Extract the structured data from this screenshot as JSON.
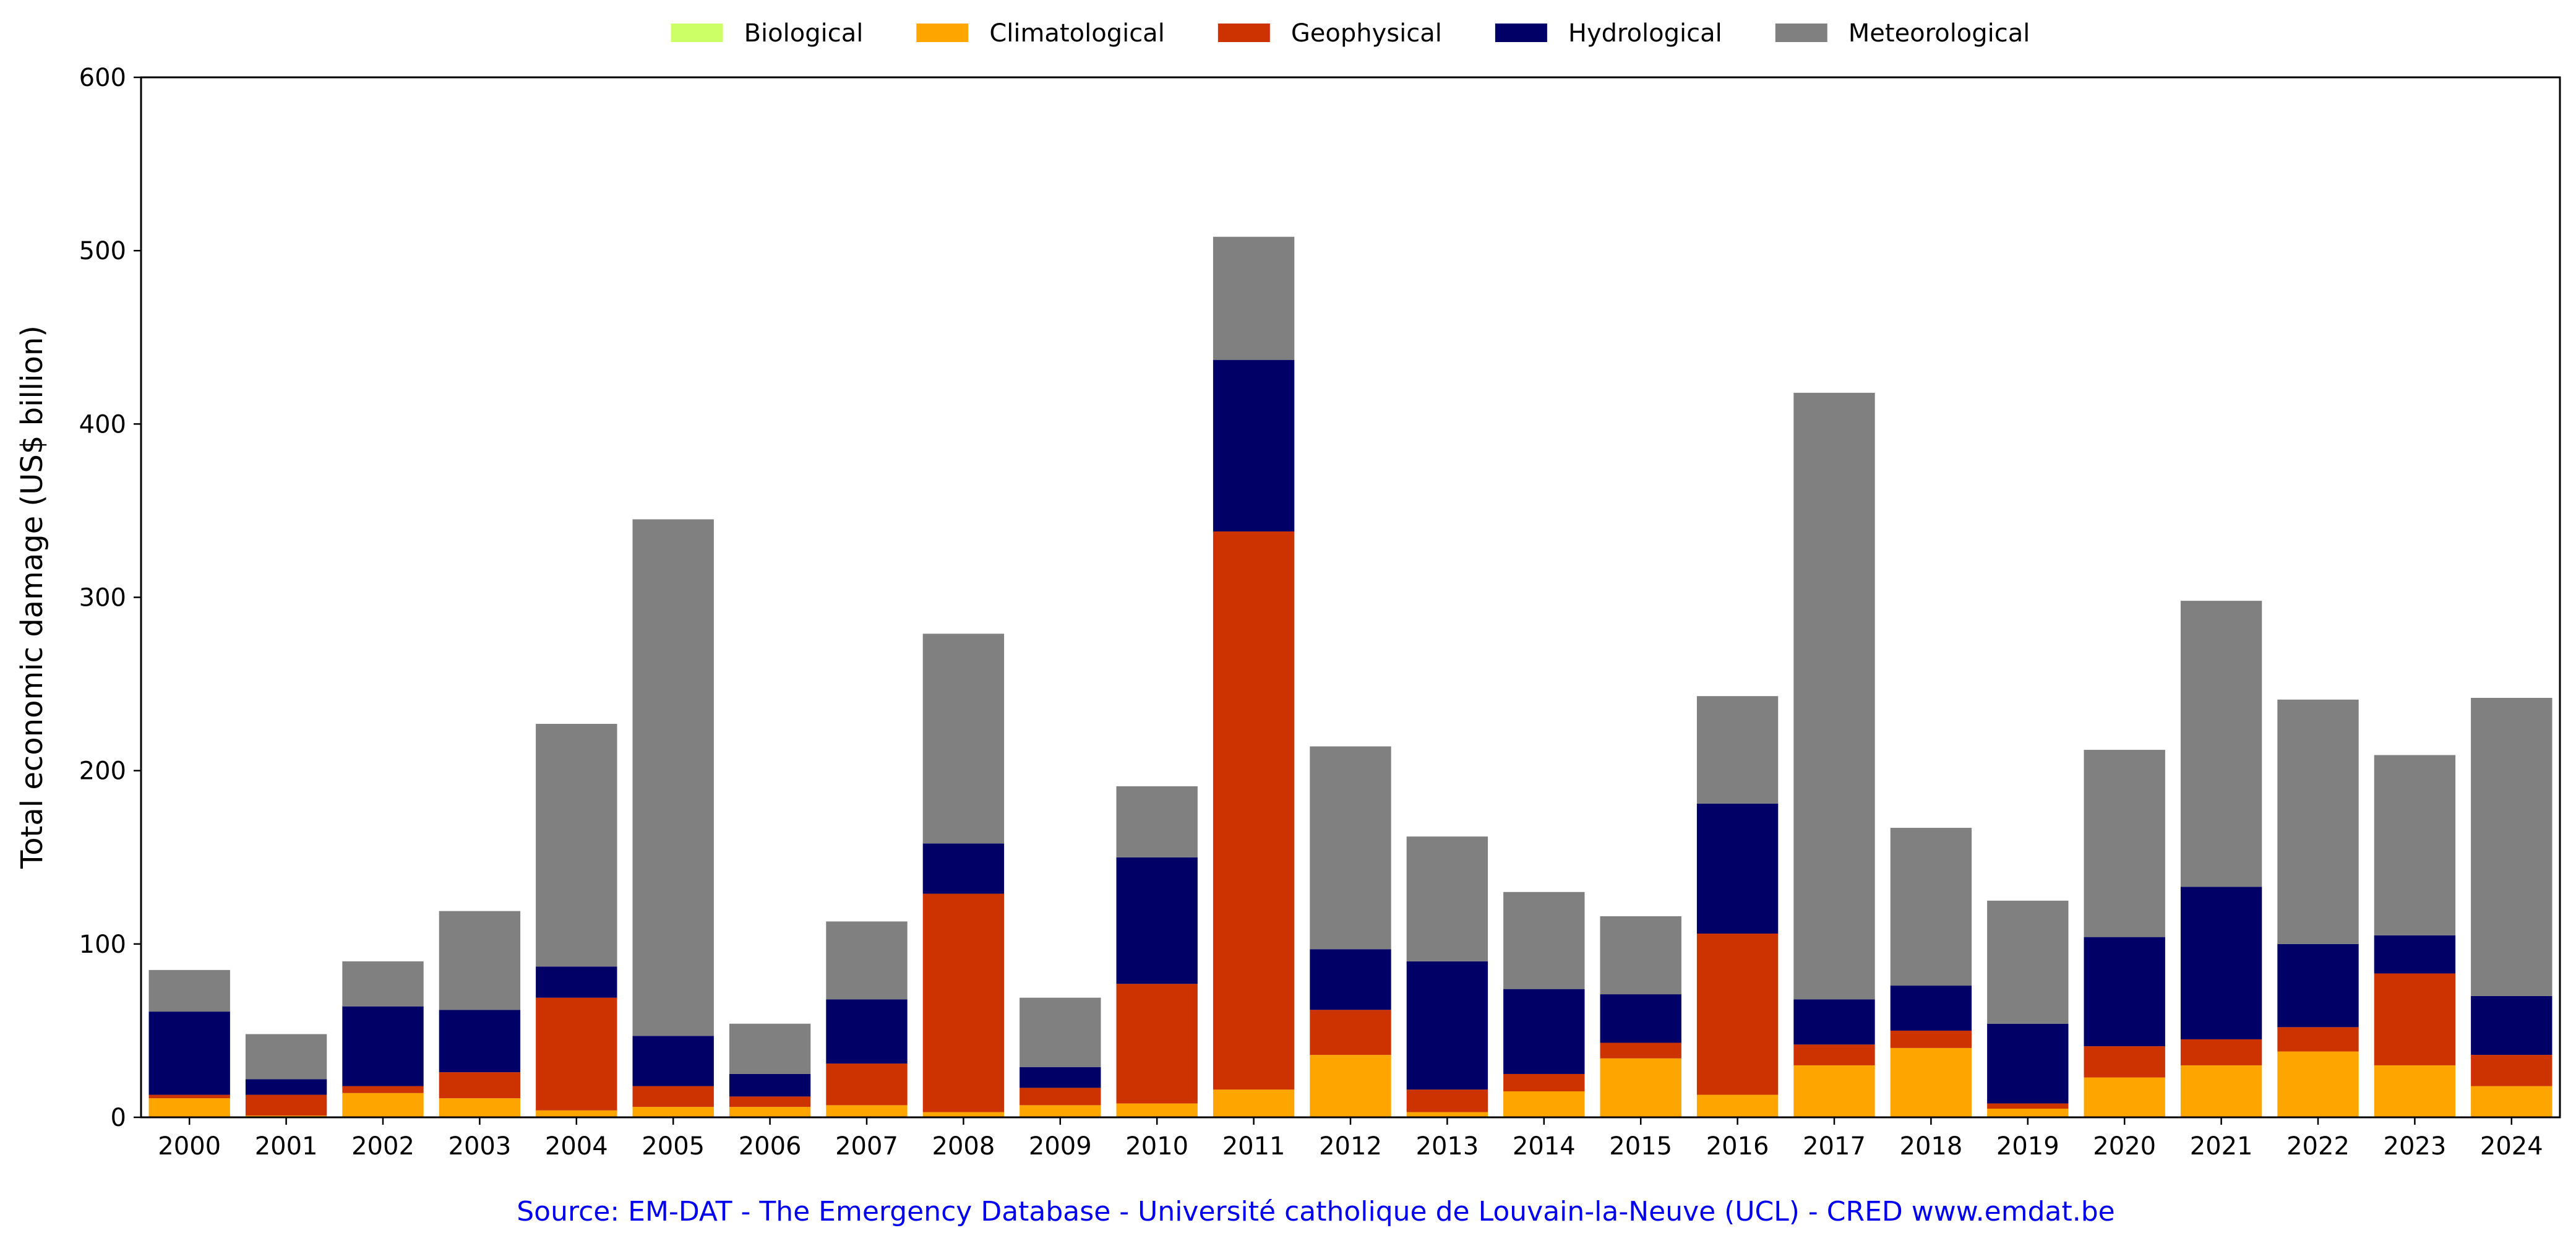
{
  "chart_data": {
    "type": "bar",
    "stacked": true,
    "title": "",
    "xlabel": "",
    "ylabel": "Total economic damage (US$ billion)",
    "ylim": [
      0,
      600
    ],
    "yticks": [
      "0",
      "100",
      "200",
      "300",
      "400",
      "500",
      "600"
    ],
    "grid": false,
    "legend_position": "top-center",
    "categories": [
      "2000",
      "2001",
      "2002",
      "2003",
      "2004",
      "2005",
      "2006",
      "2007",
      "2008",
      "2009",
      "2010",
      "2011",
      "2012",
      "2013",
      "2014",
      "2015",
      "2016",
      "2017",
      "2018",
      "2019",
      "2020",
      "2021",
      "2022",
      "2023",
      "2024"
    ],
    "series": [
      {
        "name": "Biological",
        "color": "#ccff66",
        "values": [
          0,
          0,
          0,
          0,
          0,
          0,
          0,
          0,
          0,
          0,
          0,
          0,
          0,
          0,
          0,
          0,
          0,
          0,
          0,
          0,
          0,
          0,
          0,
          0,
          0
        ]
      },
      {
        "name": "Climatological",
        "color": "#ffa500",
        "values": [
          11,
          1,
          14,
          11,
          4,
          6,
          6,
          7,
          3,
          7,
          8,
          16,
          36,
          3,
          15,
          34,
          13,
          30,
          40,
          5,
          23,
          30,
          38,
          30,
          18
        ]
      },
      {
        "name": "Geophysical",
        "color": "#cc3300",
        "values": [
          2,
          12,
          4,
          15,
          65,
          12,
          6,
          24,
          126,
          10,
          69,
          322,
          26,
          13,
          10,
          9,
          93,
          12,
          10,
          3,
          18,
          15,
          14,
          53,
          18
        ]
      },
      {
        "name": "Hydrological",
        "color": "#000066",
        "values": [
          48,
          9,
          46,
          36,
          18,
          29,
          13,
          37,
          29,
          12,
          73,
          99,
          35,
          74,
          49,
          28,
          75,
          26,
          26,
          46,
          63,
          88,
          48,
          22,
          34
        ]
      },
      {
        "name": "Meteorological",
        "color": "#808080",
        "values": [
          24,
          26,
          26,
          57,
          140,
          298,
          29,
          45,
          121,
          40,
          41,
          71,
          117,
          72,
          56,
          45,
          62,
          350,
          91,
          71,
          108,
          165,
          141,
          104,
          172
        ]
      }
    ],
    "source": "Source: EM-DAT - The Emergency Database - Université catholique de Louvain-la-Neuve (UCL) - CRED www.emdat.be"
  }
}
